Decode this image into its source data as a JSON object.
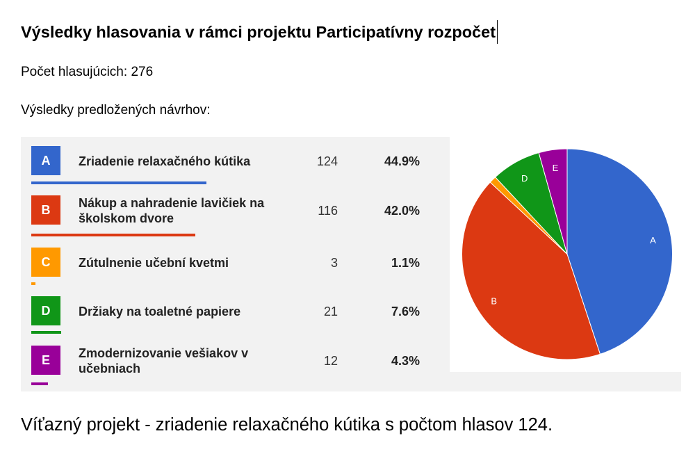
{
  "document": {
    "title": "Výsledky hlasovania v rámci projektu Participatívny rozpočet",
    "voters": {
      "label": "Počet hlasujúcich:",
      "count": 276
    },
    "results_heading": "Výsledky predložených návrhov:",
    "conclusion": "Víťazný projekt - zriadenie relaxačného kútika s počtom hlasov 124."
  },
  "chart_data": {
    "type": "pie",
    "categories": [
      "A",
      "B",
      "C",
      "D",
      "E"
    ],
    "category_names": [
      "Zriadenie relaxačného kútika",
      "Nákup a nahradenie lavičiek na školskom dvore",
      "Zútulnenie učební kvetmi",
      "Držiaky na toaletné papiere",
      "Zmodernizovanie vešiakov v učebniach"
    ],
    "values": [
      124,
      116,
      3,
      21,
      12
    ],
    "percentages": [
      "44.9%",
      "42.0%",
      "1.1%",
      "7.6%",
      "4.3%"
    ],
    "colors": [
      "#3366cc",
      "#dc3912",
      "#ff9900",
      "#109618",
      "#990099"
    ],
    "legend": "left"
  }
}
